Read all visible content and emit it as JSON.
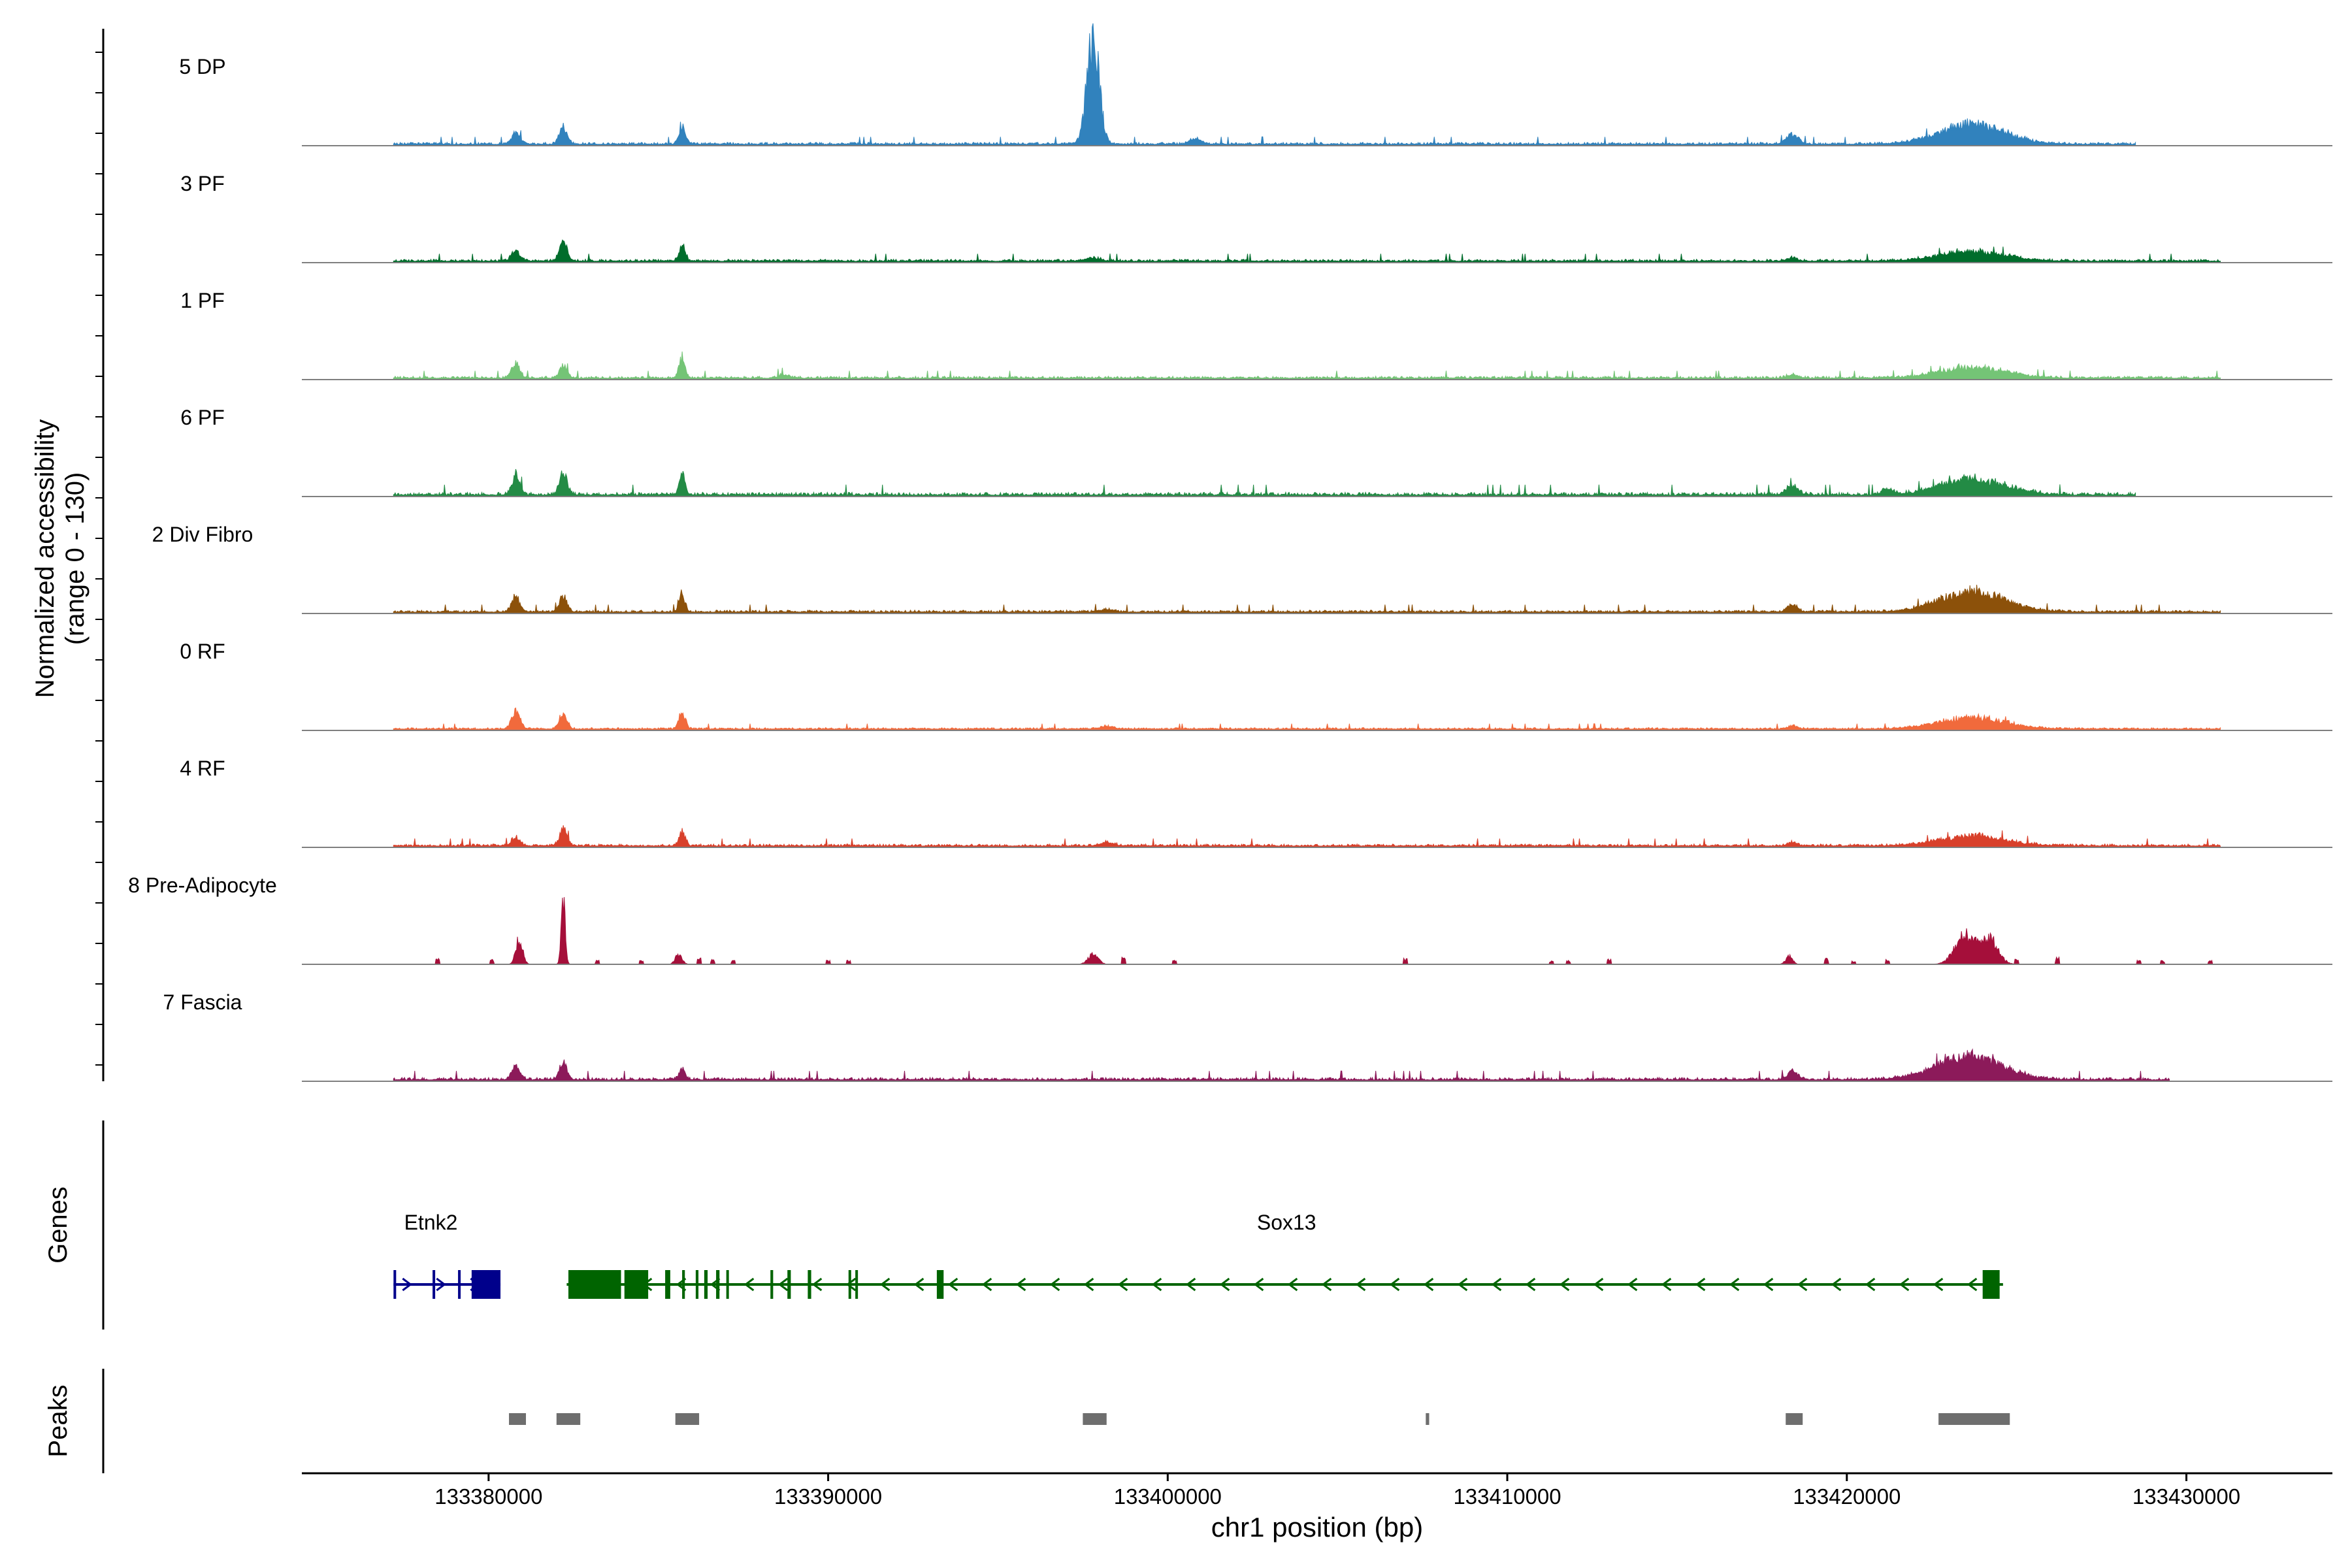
{
  "chart_data": {
    "type": "area",
    "ylabel": "Normalized accessibility",
    "ylabel_range": "(range 0 - 130)",
    "ylim": [
      0,
      130
    ],
    "xlabel": "chr1 position (bp)",
    "xlim": [
      133374500,
      133434300
    ],
    "xticks": [
      133380000,
      133390000,
      133400000,
      133410000,
      133420000,
      133430000
    ],
    "xtick_labels": [
      "133380000",
      "133390000",
      "133400000",
      "133410000",
      "133420000",
      "133430000"
    ],
    "region": [
      133377200,
      133431200
    ],
    "baseline": 1.5,
    "tracks": [
      {
        "name": "5 DP",
        "color": "#3182BD",
        "end": 133428500,
        "noise": 2.5,
        "peaks": [
          [
            133380800,
            14,
            120
          ],
          [
            133382200,
            22,
            110
          ],
          [
            133385700,
            25,
            90
          ],
          [
            133397800,
            128,
            180
          ],
          [
            133400800,
            7,
            150
          ],
          [
            133418400,
            12,
            180
          ],
          [
            133423700,
            24,
            950
          ]
        ]
      },
      {
        "name": "3 PF",
        "color": "#006D2C",
        "end": 133431000,
        "noise": 2.5,
        "peaks": [
          [
            133380800,
            13,
            120
          ],
          [
            133382200,
            25,
            110
          ],
          [
            133385700,
            20,
            90
          ],
          [
            133397800,
            4,
            200
          ],
          [
            133418400,
            4,
            150
          ],
          [
            133423700,
            12,
            950
          ]
        ]
      },
      {
        "name": "1 PF",
        "color": "#74C476",
        "end": 133431000,
        "noise": 2.5,
        "peaks": [
          [
            133380800,
            17,
            120
          ],
          [
            133382200,
            15,
            110
          ],
          [
            133385700,
            25,
            90
          ],
          [
            133388700,
            4,
            150
          ],
          [
            133418400,
            4,
            150
          ],
          [
            133423700,
            13,
            950
          ]
        ]
      },
      {
        "name": "6 PF",
        "color": "#238B45",
        "end": 133428500,
        "noise": 3.5,
        "peaks": [
          [
            133380800,
            23,
            120
          ],
          [
            133382200,
            25,
            110
          ],
          [
            133385700,
            25,
            90
          ],
          [
            133418400,
            10,
            180
          ],
          [
            133421200,
            7,
            150
          ],
          [
            133423700,
            19,
            950
          ]
        ]
      },
      {
        "name": "2 Div Fibro",
        "color": "#8C510A",
        "end": 133431000,
        "noise": 2.5,
        "peaks": [
          [
            133380800,
            18,
            120
          ],
          [
            133382200,
            19,
            110
          ],
          [
            133385700,
            19,
            90
          ],
          [
            133398200,
            3,
            200
          ],
          [
            133418400,
            9,
            150
          ],
          [
            133423700,
            25,
            950
          ]
        ]
      },
      {
        "name": "0 RF",
        "color": "#F16A3C",
        "end": 133431000,
        "noise": 1.8,
        "peaks": [
          [
            133380800,
            21,
            120
          ],
          [
            133382200,
            20,
            110
          ],
          [
            133385700,
            22,
            90
          ],
          [
            133398200,
            3,
            200
          ],
          [
            133418400,
            4,
            150
          ],
          [
            133423700,
            14,
            950
          ]
        ]
      },
      {
        "name": "4 RF",
        "color": "#D8402B",
        "end": 133431000,
        "noise": 2.5,
        "peaks": [
          [
            133380800,
            10,
            120
          ],
          [
            133382200,
            20,
            110
          ],
          [
            133385700,
            18,
            90
          ],
          [
            133398200,
            4,
            200
          ],
          [
            133418400,
            4,
            150
          ],
          [
            133423700,
            12,
            950
          ]
        ]
      },
      {
        "name": "8 Pre-Adipocyte",
        "color": "#A50F3A",
        "end": 133431000,
        "noise": 0,
        "sparse": true,
        "peaks": [
          [
            133380900,
            32,
            100
          ],
          [
            133382200,
            75,
            60
          ],
          [
            133385600,
            12,
            100
          ],
          [
            133397800,
            12,
            150
          ],
          [
            133418300,
            10,
            100
          ],
          [
            133423500,
            35,
            300
          ],
          [
            133424200,
            30,
            250
          ]
        ],
        "blips": [
          [
            133378500,
            6
          ],
          [
            133380100,
            5
          ],
          [
            133383200,
            4
          ],
          [
            133384500,
            4
          ],
          [
            133386200,
            8
          ],
          [
            133386600,
            5
          ],
          [
            133387200,
            4
          ],
          [
            133390000,
            4
          ],
          [
            133390600,
            4
          ],
          [
            133398700,
            8
          ],
          [
            133400200,
            4
          ],
          [
            133407000,
            6
          ],
          [
            133411300,
            4
          ],
          [
            133411800,
            4
          ],
          [
            133413000,
            6
          ],
          [
            133419400,
            6
          ],
          [
            133420200,
            4
          ],
          [
            133421200,
            6
          ],
          [
            133425000,
            5
          ],
          [
            133426200,
            7
          ],
          [
            133428600,
            4
          ],
          [
            133429300,
            4
          ],
          [
            133430700,
            4
          ]
        ]
      },
      {
        "name": "7 Fascia",
        "color": "#8C1A5A",
        "end": 133429500,
        "noise": 3,
        "peaks": [
          [
            133380800,
            16,
            120
          ],
          [
            133382200,
            21,
            110
          ],
          [
            133385700,
            14,
            90
          ],
          [
            133418400,
            10,
            150
          ],
          [
            133423600,
            28,
            950
          ]
        ]
      }
    ],
    "genes_label": "Genes",
    "peaks_label": "Peaks",
    "genes": [
      {
        "name": "Etnk2",
        "color": "#00008B",
        "strand": "+",
        "start": 133377200,
        "end": 133380350,
        "label_pos": 133378300,
        "exons": [
          [
            133377200,
            133377270
          ],
          [
            133378350,
            133378400
          ],
          [
            133379100,
            133379150
          ],
          [
            133379500,
            133380350
          ]
        ]
      },
      {
        "name": "Sox13",
        "color": "#006400",
        "strand": "-",
        "start": 133382300,
        "end": 133424600,
        "label_pos": 133403500,
        "exons": [
          [
            133382350,
            133383900
          ],
          [
            133384000,
            133384700
          ],
          [
            133385200,
            133385350
          ],
          [
            133385700,
            133385780
          ],
          [
            133386100,
            133386180
          ],
          [
            133386350,
            133386450
          ],
          [
            133386700,
            133386800
          ],
          [
            133387000,
            133387070
          ],
          [
            133388300,
            133388380
          ],
          [
            133388800,
            133388900
          ],
          [
            133389400,
            133389500
          ],
          [
            133390600,
            133390660
          ],
          [
            133390800,
            133390860
          ],
          [
            133393200,
            133393400
          ],
          [
            133424000,
            133424500
          ]
        ]
      }
    ],
    "peak_regions": [
      [
        133380600,
        133381100
      ],
      [
        133382000,
        133382700
      ],
      [
        133385500,
        133386200
      ],
      [
        133397500,
        133398200
      ],
      [
        133407600,
        133407700
      ],
      [
        133418200,
        133418700
      ],
      [
        133422700,
        133424800
      ]
    ]
  }
}
